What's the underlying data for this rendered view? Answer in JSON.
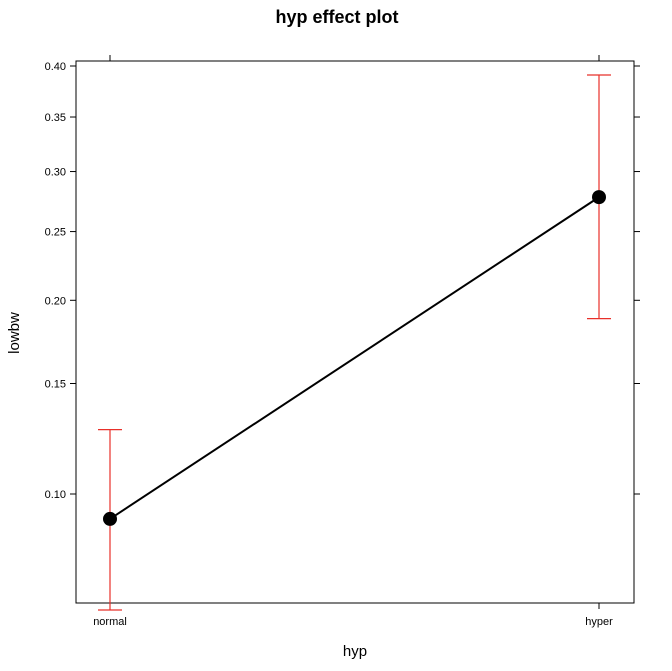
{
  "chart_data": {
    "type": "line",
    "title": "hyp effect plot",
    "xlabel": "hyp",
    "ylabel": "lowbw",
    "y_scale": "logit",
    "categories": [
      "normal",
      "hyper"
    ],
    "values": [
      0.091,
      0.278
    ],
    "lower": [
      0.064,
      0.188
    ],
    "upper": [
      0.127,
      0.391
    ],
    "y_ticks": [
      "0.10",
      "0.15",
      "0.20",
      "0.25",
      "0.30",
      "0.35",
      "0.40"
    ],
    "grid": false,
    "colors": {
      "line": "#000000",
      "point": "#000000",
      "error_bar": "#e8302a"
    }
  }
}
